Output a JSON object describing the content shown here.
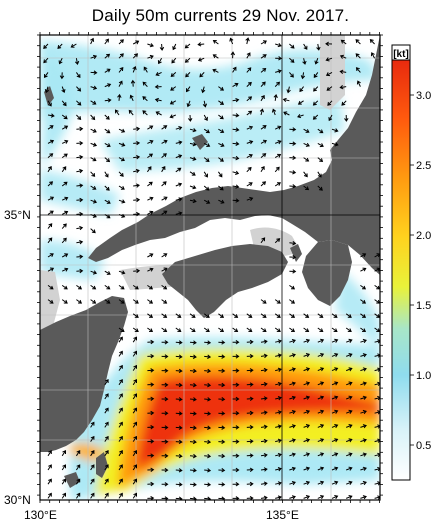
{
  "title": "Daily 50m currents 29 Nov. 2017.",
  "colorbar": {
    "unit": "[kt]",
    "ticks": [
      "0.5",
      "1.0",
      "1.5",
      "2.0",
      "2.5",
      "3.0"
    ],
    "tick_values": [
      0.5,
      1.0,
      1.5,
      2.0,
      2.5,
      3.0
    ],
    "range": [
      0.25,
      3.25
    ]
  },
  "axes": {
    "lat_labels": [
      "35°N",
      "30°N"
    ],
    "lon_labels": [
      "130°E",
      "135°E"
    ]
  },
  "colors": {
    "land": "#5a5a5a",
    "shelf": "#d2d2d2",
    "slow_water": "#ffffff",
    "cyan": "#a9e8f4",
    "jet_yellow": "#f3ef22",
    "jet_orange": "#ff9a10",
    "jet_red": "#ee3010",
    "arrow": "#000000"
  }
}
